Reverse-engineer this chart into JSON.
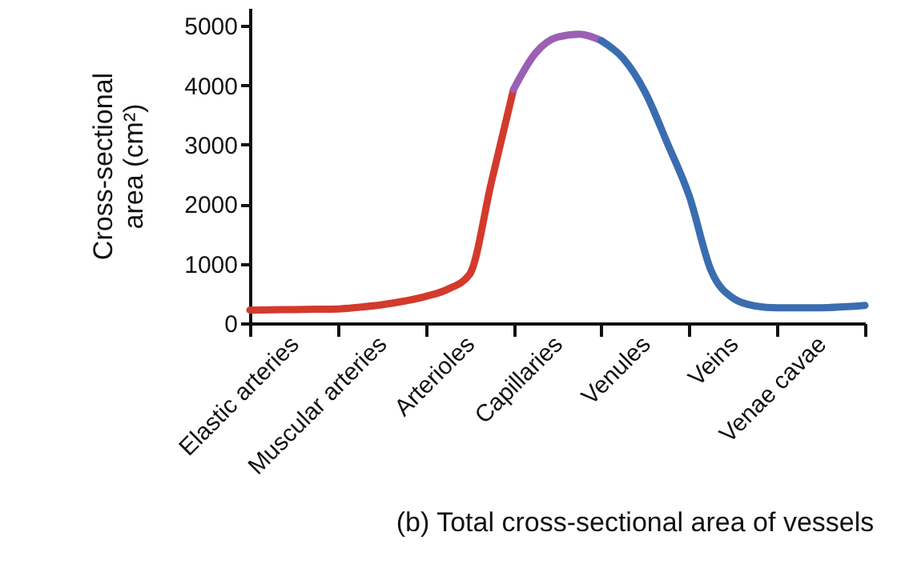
{
  "chart_data": {
    "type": "line",
    "title": "(b) Total cross-sectional area of vessels",
    "ylabel": "Cross-sectional area (cm²)",
    "categories": [
      null,
      null,
      "Elastic arteries",
      null,
      null,
      null,
      "Muscular arteries",
      null,
      null,
      null,
      "Arterioles",
      null,
      null,
      null,
      "Capillaries",
      null,
      null,
      null,
      "Venules",
      null,
      null,
      null,
      "Veins",
      null,
      null,
      null,
      "Venae cavae",
      null,
      null
    ],
    "ylim": [
      0,
      5300
    ],
    "yticks": [
      0,
      1000,
      2000,
      3000,
      4000,
      5000
    ],
    "series": [
      {
        "color": "#d33a2c",
        "values": [
          220,
          225,
          230,
          235,
          240,
          270,
          310,
          370,
          450,
          570,
          820,
          2380,
          3930,
          null,
          null,
          null,
          null,
          null,
          null,
          null,
          null,
          null,
          null,
          null,
          null,
          null,
          null,
          null,
          null
        ]
      },
      {
        "color": "#9b5fb4",
        "values": [
          null,
          null,
          null,
          null,
          null,
          null,
          null,
          null,
          null,
          null,
          null,
          null,
          3930,
          4540,
          4810,
          4860,
          4750,
          null,
          null,
          null,
          null,
          null,
          null,
          null,
          null,
          null,
          null,
          null,
          null
        ]
      },
      {
        "color": "#3a6db0",
        "values": [
          null,
          null,
          null,
          null,
          null,
          null,
          null,
          null,
          null,
          null,
          null,
          null,
          null,
          null,
          null,
          null,
          4750,
          4450,
          3880,
          3030,
          2140,
          880,
          420,
          290,
          260,
          260,
          260,
          275,
          300
        ]
      }
    ]
  }
}
